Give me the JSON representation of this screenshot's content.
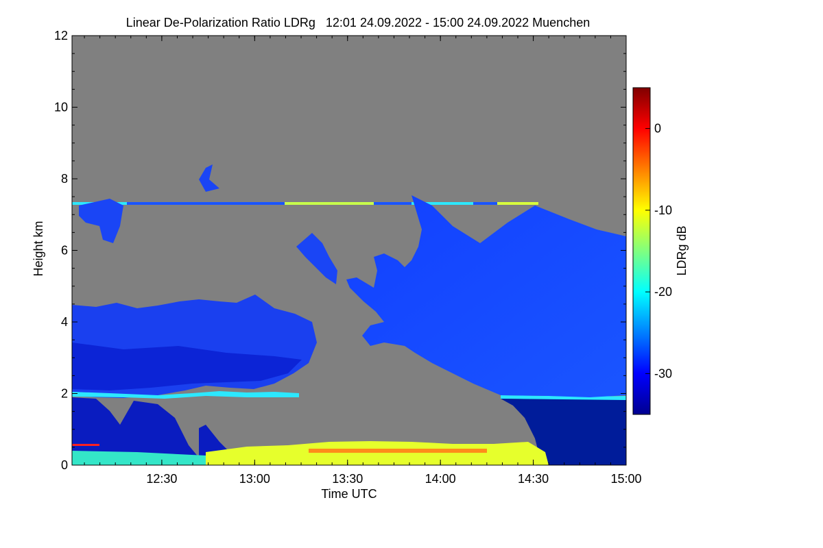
{
  "chart_data": {
    "type": "heatmap",
    "title": "Linear De-Polarization Ratio LDRg   12:01 24.09.2022 - 15:00 24.09.2022 Muenchen",
    "xlabel": "Time UTC",
    "ylabel": "Height km",
    "colorbar_label": "LDRg dB",
    "xlim": [
      "12:01",
      "15:00"
    ],
    "ylim": [
      0,
      12
    ],
    "x_ticks": [
      "12:30",
      "13:00",
      "13:30",
      "14:00",
      "14:30",
      "15:00"
    ],
    "y_ticks": [
      "0",
      "2",
      "4",
      "6",
      "8",
      "10",
      "12"
    ],
    "colorbar_range": [
      -35,
      5
    ],
    "colorbar_ticks": [
      "0",
      "-10",
      "-20",
      "-30"
    ],
    "colors": {
      "background_no_signal": "#808080",
      "low_ldr": "#1a3cff",
      "very_low_ldr": "#00109a",
      "mid_ldr": "#00e5ff",
      "high_ldr": "#ffe800",
      "max_ldr": "#c00000"
    }
  }
}
